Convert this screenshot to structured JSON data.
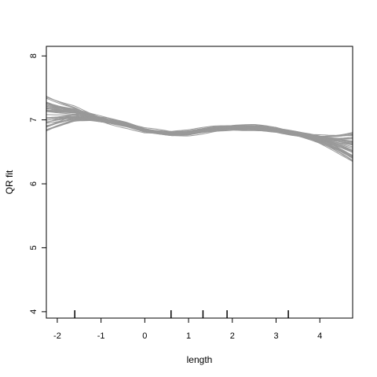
{
  "chart_data": {
    "type": "line",
    "title": "",
    "xlabel": "length",
    "ylabel": "QR fit",
    "xlim": [
      -2.25,
      4.75
    ],
    "ylim": [
      3.9,
      8.15
    ],
    "x_ticks": [
      -2,
      -1,
      0,
      1,
      2,
      3,
      4
    ],
    "x_tick_labels": [
      "-2",
      "-1",
      "0",
      "1",
      "2",
      "3",
      "4"
    ],
    "y_ticks": [
      4,
      5,
      6,
      7,
      8
    ],
    "y_tick_labels": [
      "4",
      "5",
      "6",
      "7",
      "8"
    ],
    "grid": false,
    "legend": "none",
    "line_color": "#999999",
    "rug_x": [
      -1.6,
      0.6,
      1.33,
      1.88,
      3.28
    ],
    "central_curve": {
      "x": [
        -2.25,
        -1.6,
        -1.0,
        -0.4,
        0.0,
        0.6,
        1.0,
        1.6,
        2.0,
        2.5,
        3.0,
        3.5,
        4.0,
        4.4,
        4.75
      ],
      "y": [
        7.05,
        7.08,
        7.0,
        6.92,
        6.84,
        6.79,
        6.8,
        6.86,
        6.88,
        6.88,
        6.85,
        6.78,
        6.7,
        6.63,
        6.57
      ]
    },
    "band_count": 45
  }
}
